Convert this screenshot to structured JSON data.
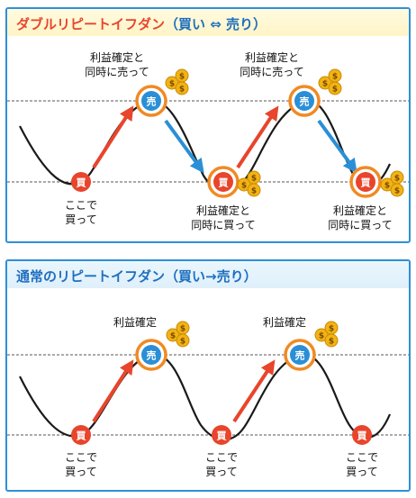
{
  "top_panel": {
    "title_main": "ダブルリピートイフダン",
    "title_sub": "（買い ⇔ 売り）",
    "buy_marker": "買",
    "sell_marker": "売",
    "buy_text_line1": "ここで",
    "buy_text_line2": "買って",
    "profit_sell_line1": "利益確定と",
    "profit_sell_line2": "同時に売って",
    "profit_buy_line1": "利益確定と",
    "profit_buy_line2": "同時に買って",
    "coin_symbol": "$"
  },
  "bottom_panel": {
    "title": "通常のリピートイフダン（買い→売り）",
    "buy_marker": "買",
    "sell_marker": "売",
    "buy_text_line1": "ここで",
    "buy_text_line2": "買って",
    "profit_label": "利益確定",
    "coin_symbol": "$"
  },
  "colors": {
    "panel_border": "#2f8fd8",
    "buy_red": "#e8452c",
    "sell_blue": "#2a8fd6",
    "ring_orange": "#f08a24",
    "up_arrow": "#e8452c",
    "down_arrow": "#2a8fd6",
    "coin_gold": "#f2b315"
  }
}
